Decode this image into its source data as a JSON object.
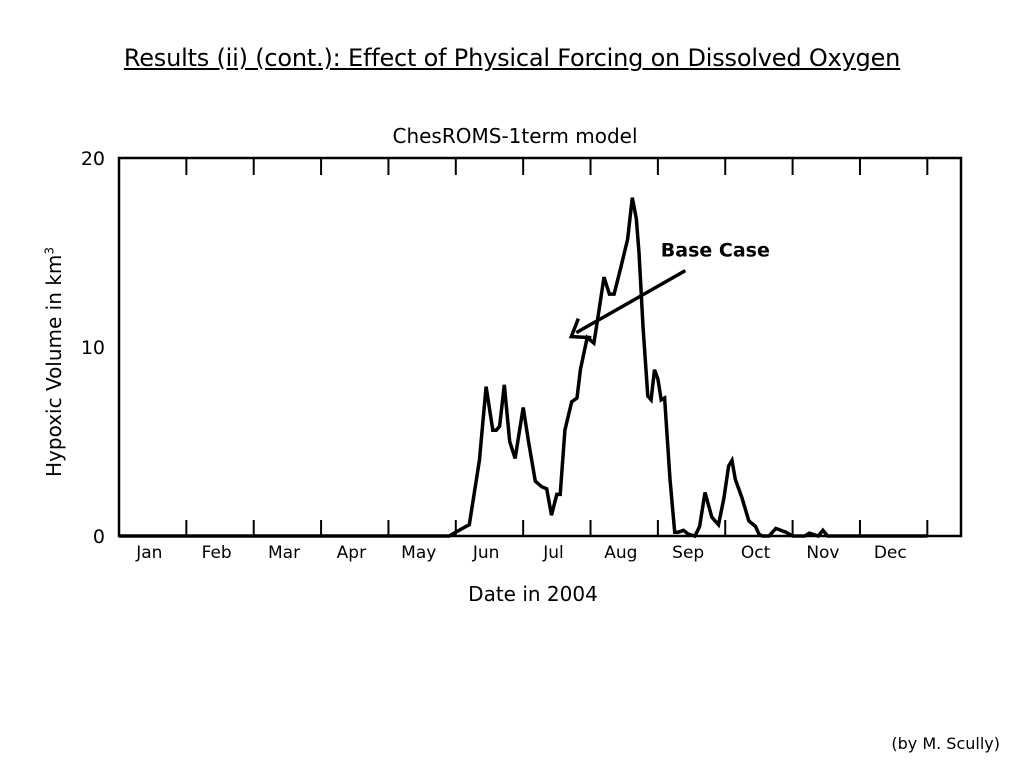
{
  "slide": {
    "title": "Results (ii) (cont.): Effect of Physical Forcing on Dissolved Oxygen",
    "credit": "(by M. Scully)"
  },
  "chart_data": {
    "type": "line",
    "title": "ChesROMS-1term model",
    "xlabel": "Date in 2004",
    "ylabel": "Hypoxic Volume in km",
    "ylabel_superscript": "3",
    "ylim": [
      0,
      20
    ],
    "yticks": [
      0,
      10,
      20
    ],
    "xlim": [
      0,
      12
    ],
    "month_ticks": [
      "Jan",
      "Feb",
      "Mar",
      "Apr",
      "May",
      "Jun",
      "Jul",
      "Aug",
      "Sep",
      "Oct",
      "Nov",
      "Dec"
    ],
    "grid": false,
    "annotation": {
      "text": "Base Case",
      "x": 6.7,
      "y": 10.6
    },
    "series": [
      {
        "name": "Base Case",
        "color": "#000000",
        "x": [
          0,
          4.9,
          5.1,
          5.2,
          5.35,
          5.45,
          5.55,
          5.6,
          5.65,
          5.72,
          5.8,
          5.88,
          6.0,
          6.08,
          6.18,
          6.28,
          6.35,
          6.42,
          6.5,
          6.55,
          6.62,
          6.72,
          6.8,
          6.85,
          6.95,
          7.05,
          7.12,
          7.2,
          7.28,
          7.35,
          7.45,
          7.55,
          7.62,
          7.68,
          7.72,
          7.78,
          7.85,
          7.9,
          7.95,
          8.0,
          8.05,
          8.1,
          8.18,
          8.25,
          8.3,
          8.38,
          8.45,
          8.55,
          8.62,
          8.7,
          8.8,
          8.9,
          8.98,
          9.05,
          9.1,
          9.15,
          9.25,
          9.35,
          9.45,
          9.5,
          9.55,
          9.6,
          9.65,
          9.75,
          9.9,
          10.0,
          10.08,
          10.18,
          10.25,
          10.38,
          10.45,
          10.52,
          10.6,
          11.0,
          12.0
        ],
        "y": [
          0,
          0,
          0.4,
          0.6,
          4.0,
          7.9,
          5.6,
          5.6,
          5.8,
          8.0,
          5.0,
          4.1,
          6.8,
          5.0,
          2.9,
          2.6,
          2.5,
          1.1,
          2.2,
          2.2,
          5.6,
          7.1,
          7.3,
          8.8,
          10.5,
          10.2,
          11.8,
          13.7,
          12.8,
          12.8,
          14.2,
          15.7,
          17.9,
          16.8,
          15.0,
          11.0,
          7.4,
          7.2,
          8.8,
          8.3,
          7.2,
          7.3,
          3.0,
          0.2,
          0.2,
          0.3,
          0.1,
          0.0,
          0.5,
          2.3,
          1.0,
          0.6,
          2.0,
          3.7,
          4.0,
          3.0,
          2.0,
          0.8,
          0.5,
          0.1,
          0.0,
          0.0,
          0.0,
          0.4,
          0.2,
          0.0,
          0.0,
          0.0,
          0.15,
          0.0,
          0.3,
          0.0,
          0.0,
          0.0,
          0.0
        ]
      }
    ]
  }
}
